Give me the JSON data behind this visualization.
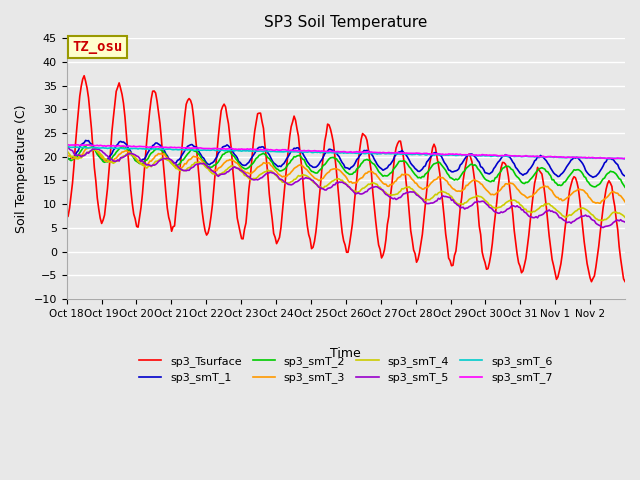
{
  "title": "SP3 Soil Temperature",
  "ylabel": "Soil Temperature (C)",
  "xlabel": "Time",
  "annotation": "TZ_osu",
  "annotation_color": "#cc0000",
  "annotation_bg": "#ffffcc",
  "annotation_border": "#999900",
  "ylim": [
    -10,
    45
  ],
  "yticks": [
    -10,
    -5,
    0,
    5,
    10,
    15,
    20,
    25,
    30,
    35,
    40,
    45
  ],
  "xtick_positions": [
    0,
    1,
    2,
    3,
    4,
    5,
    6,
    7,
    8,
    9,
    10,
    11,
    12,
    13,
    14,
    15
  ],
  "xtick_labels": [
    "Oct 18",
    "Oct 19",
    "Oct 20",
    "Oct 21",
    "Oct 22",
    "Oct 23",
    "Oct 24",
    "Oct 25",
    "Oct 26",
    "Oct 27",
    "Oct 28",
    "Oct 29",
    "Oct 30",
    "Oct 31",
    "Nov 1",
    "Nov 2"
  ],
  "bg_color": "#e8e8e8",
  "plot_bg_color": "#e8e8e8",
  "grid_color": "#ffffff",
  "series_colors": {
    "sp3_Tsurface": "#ff0000",
    "sp3_smT_1": "#0000cc",
    "sp3_smT_2": "#00cc00",
    "sp3_smT_3": "#ff9900",
    "sp3_smT_4": "#cccc00",
    "sp3_smT_5": "#9900cc",
    "sp3_smT_6": "#00cccc",
    "sp3_smT_7": "#ff00ff"
  },
  "legend_labels": [
    "sp3_Tsurface",
    "sp3_smT_1",
    "sp3_smT_2",
    "sp3_smT_3",
    "sp3_smT_4",
    "sp3_smT_5",
    "sp3_smT_6",
    "sp3_smT_7"
  ]
}
